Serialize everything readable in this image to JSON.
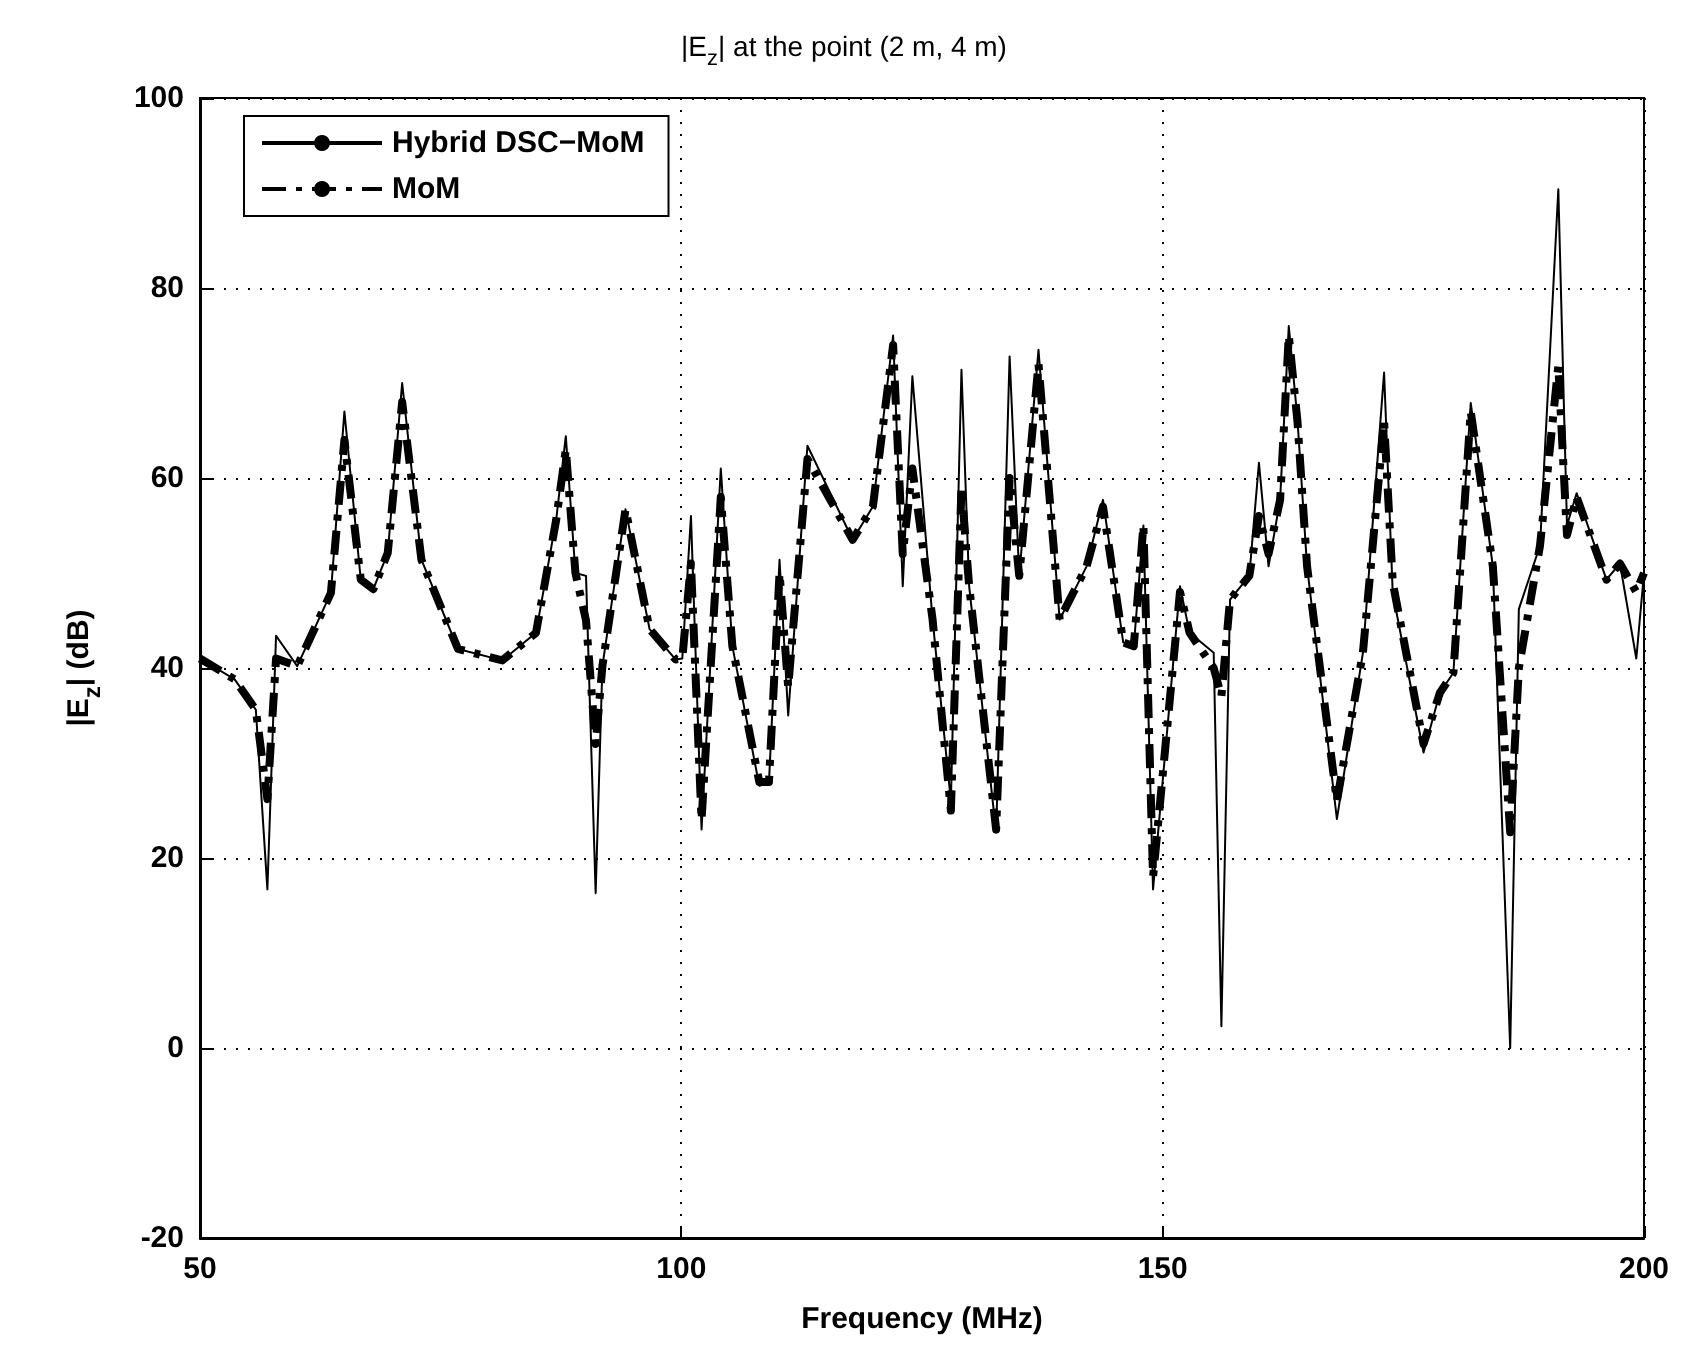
{
  "chart_data": {
    "type": "line",
    "title": "|E$_{z}$| at the point (2 m, 4 m)",
    "xlabel": "Frequency (MHz)",
    "ylabel": "|E$_{z}$| (dB)",
    "xlim": [
      50,
      200
    ],
    "xticks": [
      50,
      100,
      150,
      200
    ],
    "ylim": [
      -20,
      100
    ],
    "yticks": [
      -20,
      0,
      20,
      40,
      60,
      80,
      100
    ],
    "grid": true,
    "legend": "top left",
    "marker": "none",
    "series": [
      {
        "name": "Hybrid DSC−MoM",
        "color": "#000000",
        "line_style": "solid",
        "x": [
          50,
          53.6,
          55.8,
          57,
          57.9,
          60.1,
          63.6,
          65,
          66.7,
          68,
          69.5,
          71,
          73,
          76.8,
          81.4,
          84.9,
          87,
          88,
          89,
          90.1,
          91.1,
          91.8,
          94.2,
          96.7,
          99.4,
          100.1,
          101,
          102.1,
          104.1,
          105.3,
          108.1,
          109.1,
          110.2,
          111.1,
          113.1,
          117.8,
          119.9,
          122,
          123,
          124,
          126.1,
          128,
          129.1,
          129.9,
          132.7,
          134.1,
          135.1,
          137.1,
          139.3,
          142.1,
          143.8,
          145.9,
          147,
          148,
          149,
          151.8,
          152.8,
          155.3,
          156.1,
          157,
          159,
          160,
          161,
          162.2,
          163.1,
          164,
          165,
          168.1,
          170.8,
          173,
          173.9,
          177.1,
          178.8,
          180.2,
          182,
          184.3,
          186.1,
          187,
          189.2,
          191.1,
          192,
          193,
          196.1,
          197.5,
          199.2,
          200
        ],
        "values": [
          41,
          38.8,
          35.6,
          16.7,
          43.4,
          40.2,
          47.9,
          67,
          49.3,
          48.3,
          52.1,
          70,
          51.4,
          42,
          40.8,
          43.7,
          55.6,
          64.4,
          50,
          49.7,
          16.3,
          40.2,
          56.7,
          44.1,
          40.9,
          41,
          56,
          23,
          61,
          42.3,
          27.6,
          27.9,
          51.4,
          35,
          63.4,
          53.5,
          57,
          75,
          48.6,
          70.7,
          45.1,
          26,
          71.4,
          48.6,
          22.7,
          72.8,
          49.7,
          73.5,
          45.1,
          50.7,
          57.7,
          42.7,
          42.3,
          55,
          16.7,
          48.6,
          43.7,
          41.6,
          2.3,
          47.2,
          49.7,
          61.6,
          50.7,
          57.7,
          76,
          66.2,
          50.7,
          24.1,
          41.6,
          71.1,
          47.9,
          31.1,
          37.4,
          39.5,
          67.9,
          50.7,
          0,
          46.2,
          52.9,
          90.4,
          55,
          58.4,
          49.3,
          51,
          41,
          50
        ]
      },
      {
        "name": "MoM",
        "color": "#000000",
        "line_style": "dashed",
        "x": [
          50,
          53.6,
          55.8,
          57,
          57.9,
          60.1,
          63.6,
          65,
          66.7,
          68,
          69.5,
          71,
          73,
          76.8,
          81.4,
          84.9,
          87,
          88,
          89,
          90.1,
          91.1,
          91.8,
          94.2,
          96.7,
          99.4,
          100.1,
          101,
          102.1,
          104.1,
          105.3,
          108.1,
          109.1,
          110.2,
          111.1,
          113.1,
          117.8,
          119.9,
          122,
          123,
          124,
          126.1,
          128,
          129.1,
          129.9,
          132.7,
          134.1,
          135.1,
          137.1,
          139.3,
          142.1,
          143.8,
          145.9,
          147,
          148,
          149,
          151.8,
          152.8,
          155.3,
          156.1,
          157,
          159,
          160,
          161,
          162.2,
          163.1,
          164,
          165,
          168.1,
          170.8,
          173,
          173.9,
          177.1,
          178.8,
          180.2,
          182,
          184.3,
          186.1,
          187,
          189.2,
          191.1,
          192,
          193,
          196.1,
          197.5,
          199.2,
          200
        ],
        "values": [
          41,
          38.8,
          35.6,
          26.2,
          41,
          40.2,
          47.9,
          64,
          49.3,
          48.3,
          52.1,
          68,
          51.4,
          42,
          40.8,
          43.7,
          55.6,
          63,
          50,
          45,
          32,
          40.2,
          56.7,
          44.1,
          40.9,
          41,
          51,
          24,
          58,
          42.3,
          28,
          28,
          50,
          38,
          62,
          53.5,
          57,
          74,
          52,
          61,
          45.1,
          25,
          59,
          48.6,
          23,
          60,
          49.7,
          72,
          45.1,
          50.7,
          57,
          42.7,
          42.3,
          55,
          18,
          48,
          43.7,
          40,
          37,
          47.2,
          49.7,
          56,
          52,
          57.7,
          75,
          66,
          50.7,
          26,
          41.6,
          66,
          49,
          32,
          37.4,
          39.5,
          67,
          50.7,
          22.7,
          40,
          52.9,
          71.8,
          54,
          58,
          49.3,
          51,
          48,
          50
        ]
      }
    ]
  }
}
